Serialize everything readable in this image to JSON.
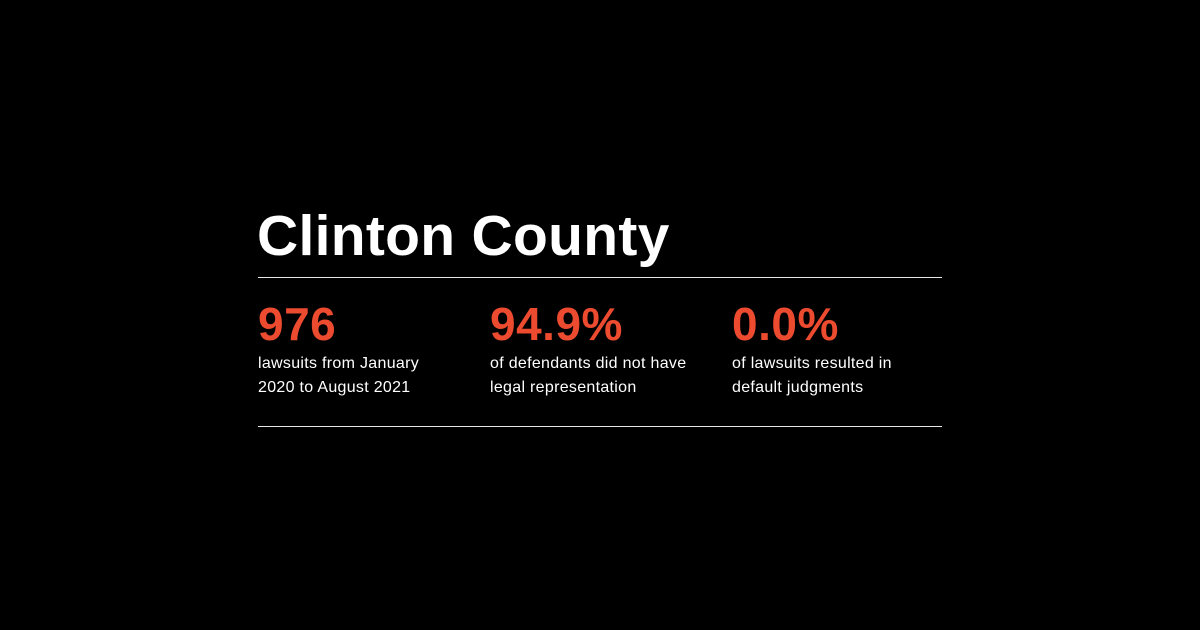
{
  "header": {
    "title": "Clinton County"
  },
  "stats": [
    {
      "figure": "976",
      "description": [
        "lawsuits from January",
        "2020 to August 2021"
      ]
    },
    {
      "figure": "94.9%",
      "description": [
        "of defendants did not have",
        "legal representation"
      ]
    },
    {
      "figure": "0.0%",
      "description": [
        "of lawsuits resulted in",
        "default judgments"
      ]
    }
  ]
}
